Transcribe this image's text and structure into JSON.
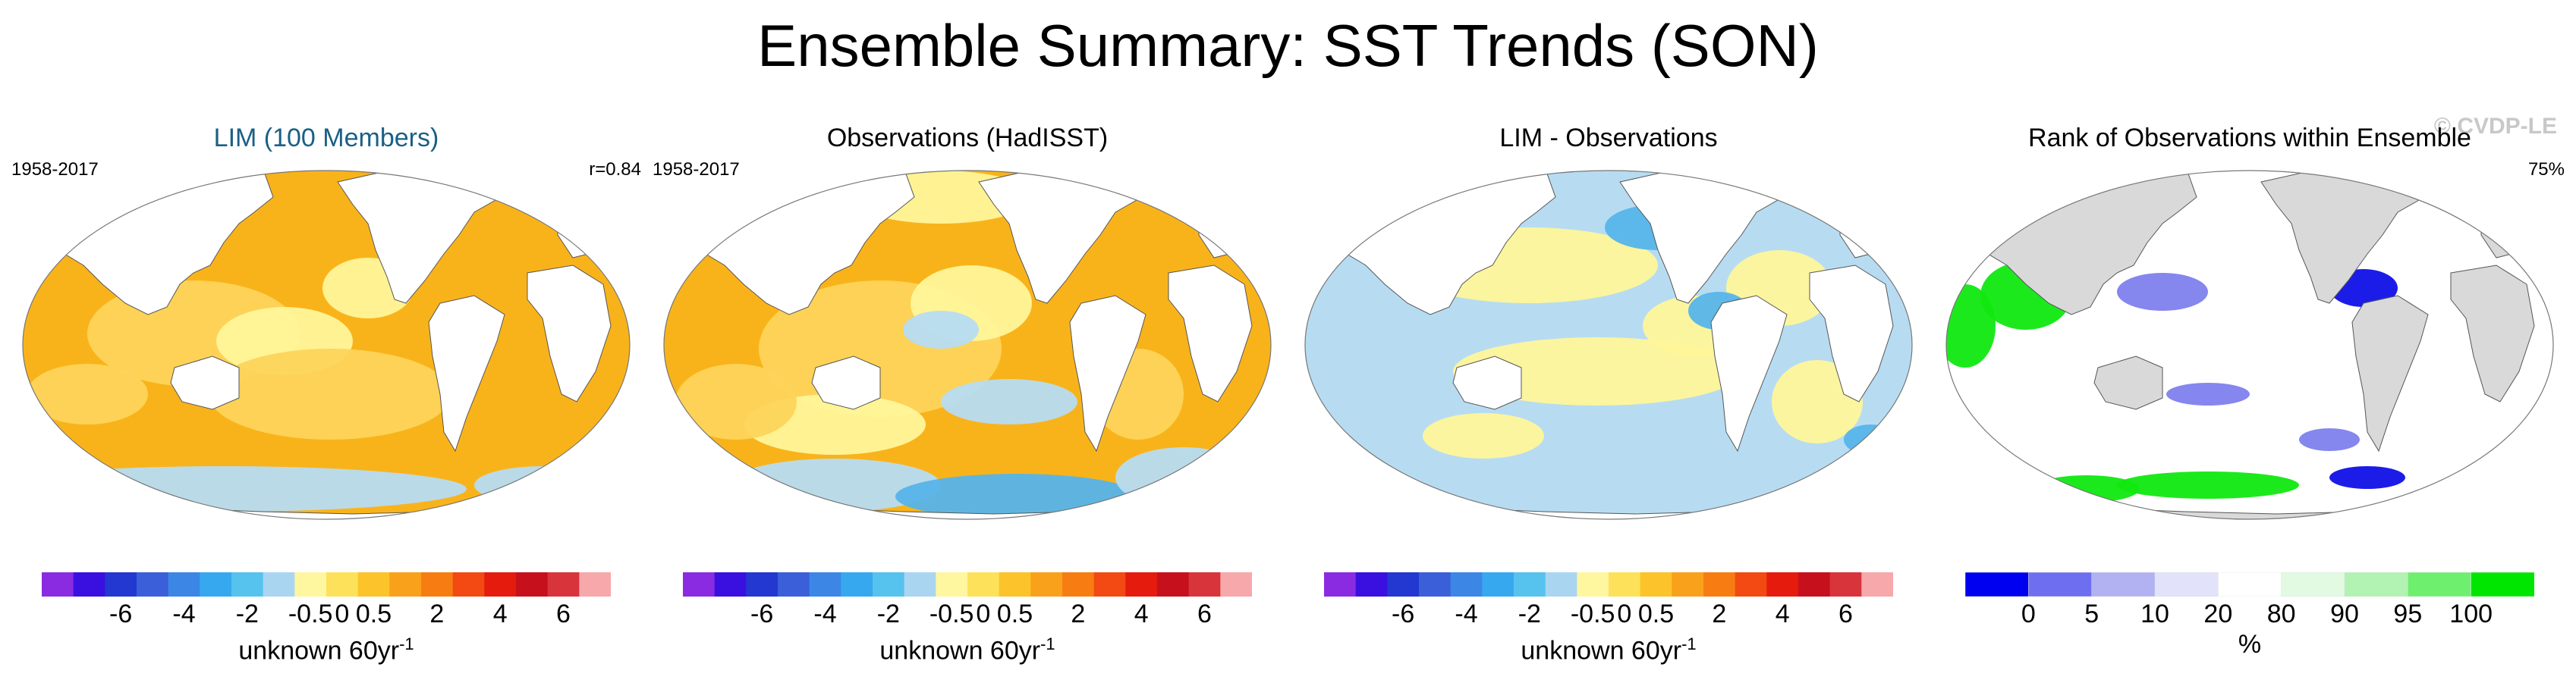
{
  "title": "Ensemble Summary: SST Trends (SON)",
  "watermark": "© CVDP-LE",
  "panels": [
    {
      "title": "LIM (100 Members)",
      "left_label": "1958-2017",
      "right_label": "r=0.84",
      "kind": "trend"
    },
    {
      "title": "Observations (HadISST)",
      "left_label": "1958-2017",
      "right_label": "",
      "kind": "trend"
    },
    {
      "title": "LIM - Observations",
      "left_label": "",
      "right_label": "",
      "kind": "diff"
    },
    {
      "title": "Rank of Observations within Ensemble",
      "left_label": "",
      "right_label": "75%",
      "kind": "rank"
    }
  ],
  "trend_colorbar": {
    "colors": [
      "#8a2be2",
      "#3a10e0",
      "#2238d0",
      "#3a5fd8",
      "#3c86e6",
      "#36a8ef",
      "#56c2ee",
      "#a9d5f0",
      "#fff6a0",
      "#fde15a",
      "#fcc42a",
      "#f9a11a",
      "#f77d12",
      "#f24a12",
      "#e51b0e",
      "#c6101c",
      "#d8343c",
      "#f7a8aa"
    ],
    "labels": [
      "-6",
      "-4",
      "-2",
      "-0.5",
      "0",
      "0.5",
      "2",
      "4",
      "6"
    ],
    "caption_text": "unknown 60yr",
    "caption_sup": "-1"
  },
  "rank_colorbar": {
    "colors": [
      "#0000f0",
      "#6e6ef0",
      "#b2b2f2",
      "#e2e2fa",
      "#ffffff",
      "#e2fae2",
      "#b2f2b2",
      "#6ef06e",
      "#00e600"
    ],
    "labels": [
      "0",
      "5",
      "10",
      "20",
      "80",
      "90",
      "95",
      "100"
    ],
    "caption": "%"
  },
  "map_colors": {
    "land": "#ffffff",
    "rank_land": "#d9d9d9",
    "coast": "#555555",
    "orange": "#f9b31a",
    "light_orange": "#fdd45a",
    "yellow": "#fff59a",
    "light_blue": "#b7dcf2",
    "blue": "#56b4ea",
    "deep_blue": "#2a7fd8",
    "rank_blue": "#1010e8",
    "rank_mid_blue": "#8080ee",
    "rank_green": "#10e810"
  }
}
